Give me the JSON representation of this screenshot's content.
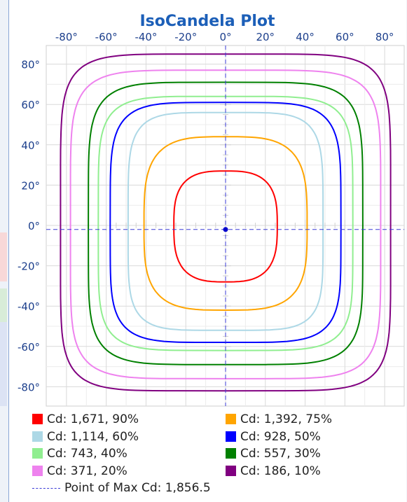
{
  "chart_data": {
    "type": "line",
    "title": "IsoCandela Plot",
    "x_ticks": [
      "-80°",
      "-60°",
      "-40°",
      "-20°",
      "0°",
      "20°",
      "40°",
      "60°",
      "80°"
    ],
    "y_ticks": [
      "80°",
      "60°",
      "40°",
      "20°",
      "0°",
      "-20°",
      "-40°",
      "-60°",
      "-80°"
    ],
    "xlim": [
      -90,
      90
    ],
    "ylim": [
      -90,
      90
    ],
    "grid": true,
    "legend_placement": "bottom",
    "max_point": {
      "x": 0,
      "y": -2,
      "label": "Point of Max Cd: 1,856.5",
      "color": "#3b3bd6"
    },
    "series": [
      {
        "name": "Cd: 1,671, 90%",
        "color": "#ff0000",
        "left": -26,
        "right": 26,
        "top": 27,
        "bottom": -28,
        "n": 3
      },
      {
        "name": "Cd: 1,392, 75%",
        "color": "#ffa500",
        "left": -41,
        "right": 41,
        "top": 44,
        "bottom": -42,
        "n": 3.5
      },
      {
        "name": "Cd: 1,114, 60%",
        "color": "#add8e6",
        "left": -49,
        "right": 49,
        "top": 56,
        "bottom": -52,
        "n": 5
      },
      {
        "name": "Cd: 928, 50%",
        "color": "#0000ff",
        "left": -58,
        "right": 58,
        "top": 61,
        "bottom": -58,
        "n": 5
      },
      {
        "name": "Cd: 743, 40%",
        "color": "#90ee90",
        "left": -64,
        "right": 64,
        "top": 64,
        "bottom": -62,
        "n": 5.5
      },
      {
        "name": "Cd: 557, 30%",
        "color": "#008000",
        "left": -69,
        "right": 69,
        "top": 71,
        "bottom": -69,
        "n": 5.5
      },
      {
        "name": "Cd: 371, 20%",
        "color": "#ee82ee",
        "left": -78,
        "right": 78,
        "top": 77,
        "bottom": -76,
        "n": 6
      },
      {
        "name": "Cd: 186, 10%",
        "color": "#800080",
        "left": -83,
        "right": 83,
        "top": 85,
        "bottom": -82,
        "n": 6.5
      }
    ]
  }
}
